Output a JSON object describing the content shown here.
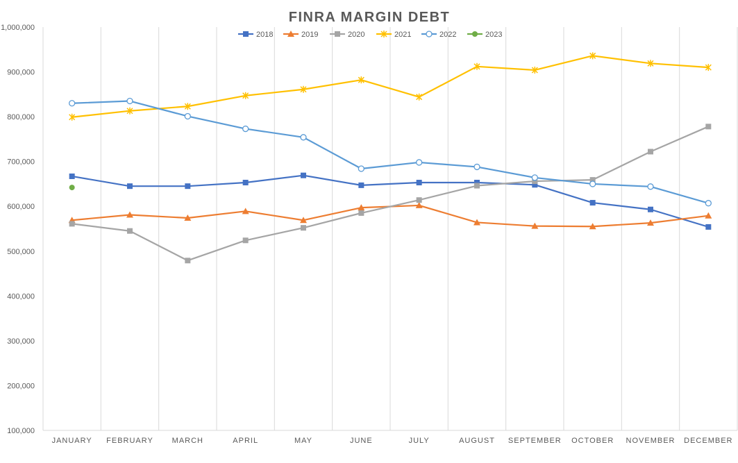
{
  "chart_data": {
    "type": "line",
    "title": "FINRA MARGIN DEBT",
    "xlabel": "",
    "ylabel": "",
    "categories": [
      "JANUARY",
      "FEBRUARY",
      "MARCH",
      "APRIL",
      "MAY",
      "JUNE",
      "JULY",
      "AUGUST",
      "SEPTEMBER",
      "OCTOBER",
      "NOVEMBER",
      "DECEMBER"
    ],
    "ylim": [
      100000,
      1000000
    ],
    "yticks": [
      100000,
      200000,
      300000,
      400000,
      500000,
      600000,
      700000,
      800000,
      900000,
      1000000
    ],
    "ytick_labels": [
      "100,000",
      "200,000",
      "300,000",
      "400,000",
      "500,000",
      "600,000",
      "700,000",
      "800,000",
      "900,000",
      "1,000,000"
    ],
    "grid": "vertical",
    "legend_position": "top",
    "series": [
      {
        "name": "2018",
        "color": "#4472C4",
        "marker": "square",
        "values": [
          667000,
          645000,
          645000,
          653000,
          669000,
          647000,
          653000,
          653000,
          648000,
          608000,
          593000,
          554000
        ]
      },
      {
        "name": "2019",
        "color": "#ED7D31",
        "marker": "triangle",
        "values": [
          569000,
          581000,
          574000,
          589000,
          569000,
          597000,
          602000,
          564000,
          556000,
          555000,
          563000,
          579000
        ]
      },
      {
        "name": "2020",
        "color": "#A5A5A5",
        "marker": "square",
        "values": [
          561000,
          545000,
          479000,
          524000,
          552000,
          585000,
          614000,
          646000,
          656000,
          659000,
          722000,
          778000
        ]
      },
      {
        "name": "2021",
        "color": "#FFC000",
        "marker": "star",
        "values": [
          799000,
          813000,
          823000,
          847000,
          861000,
          882000,
          844000,
          912000,
          904000,
          936000,
          919000,
          910000
        ]
      },
      {
        "name": "2022",
        "color": "#5B9BD5",
        "marker": "open-circle",
        "values": [
          830000,
          835000,
          801000,
          773000,
          754000,
          684000,
          698000,
          688000,
          664000,
          650000,
          644000,
          607000
        ]
      },
      {
        "name": "2023",
        "color": "#70AD47",
        "marker": "circle",
        "values": [
          642000,
          null,
          null,
          null,
          null,
          null,
          null,
          null,
          null,
          null,
          null,
          null
        ]
      }
    ]
  }
}
